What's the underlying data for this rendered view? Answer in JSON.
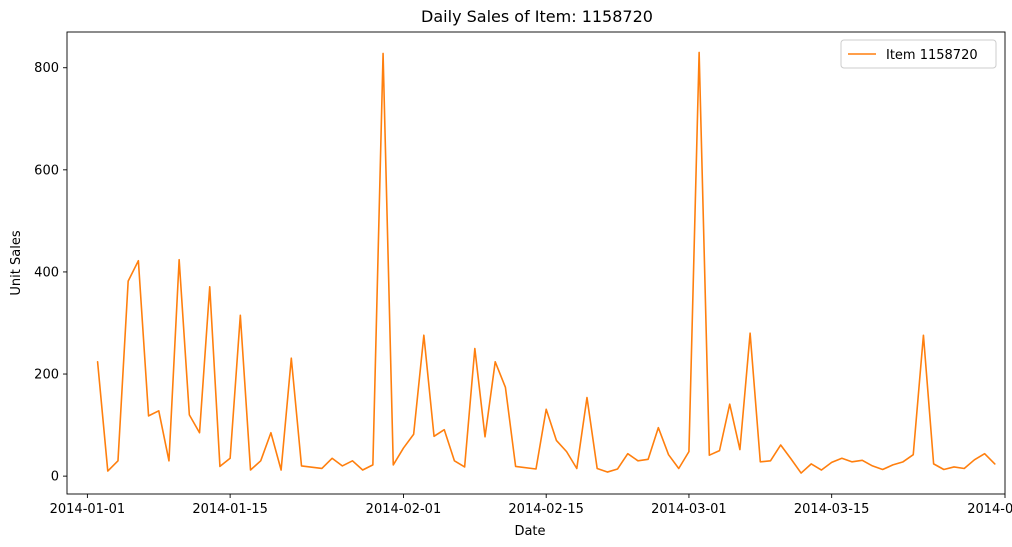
{
  "chart_data": {
    "type": "line",
    "title": "Daily Sales of Item: 1158720",
    "xlabel": "Date",
    "ylabel": "Unit Sales",
    "xlim": [
      "2013-12-30",
      "2014-04-01"
    ],
    "ylim": [
      -35,
      870
    ],
    "grid": false,
    "legend_position": "top-right",
    "x_ticks": [
      {
        "date": "2014-01-01",
        "label": "2014-01-01"
      },
      {
        "date": "2014-01-15",
        "label": "2014-01-15"
      },
      {
        "date": "2014-02-01",
        "label": "2014-02-01"
      },
      {
        "date": "2014-02-15",
        "label": "2014-02-15"
      },
      {
        "date": "2014-03-01",
        "label": "2014-03-01"
      },
      {
        "date": "2014-03-15",
        "label": "2014-03-15"
      },
      {
        "date": "2014-04-01",
        "label": "2014-04-01"
      }
    ],
    "y_ticks": [
      {
        "value": 0,
        "label": "0"
      },
      {
        "value": 200,
        "label": "200"
      },
      {
        "value": 400,
        "label": "400"
      },
      {
        "value": 600,
        "label": "600"
      },
      {
        "value": 800,
        "label": "800"
      }
    ],
    "colors": {
      "series": "#ff7f0e",
      "axis": "#000000",
      "legend_border": "#cccccc"
    },
    "series": [
      {
        "name": "Item 1158720",
        "x": [
          "2014-01-02",
          "2014-01-03",
          "2014-01-04",
          "2014-01-05",
          "2014-01-06",
          "2014-01-07",
          "2014-01-08",
          "2014-01-09",
          "2014-01-10",
          "2014-01-11",
          "2014-01-12",
          "2014-01-13",
          "2014-01-14",
          "2014-01-15",
          "2014-01-16",
          "2014-01-17",
          "2014-01-18",
          "2014-01-19",
          "2014-01-20",
          "2014-01-21",
          "2014-01-22",
          "2014-01-24",
          "2014-01-25",
          "2014-01-26",
          "2014-01-27",
          "2014-01-28",
          "2014-01-29",
          "2014-01-30",
          "2014-01-31",
          "2014-02-01",
          "2014-02-02",
          "2014-02-03",
          "2014-02-04",
          "2014-02-05",
          "2014-02-06",
          "2014-02-07",
          "2014-02-08",
          "2014-02-09",
          "2014-02-10",
          "2014-02-11",
          "2014-02-12",
          "2014-02-14",
          "2014-02-15",
          "2014-02-16",
          "2014-02-17",
          "2014-02-18",
          "2014-02-19",
          "2014-02-20",
          "2014-02-21",
          "2014-02-22",
          "2014-02-23",
          "2014-02-24",
          "2014-02-25",
          "2014-02-26",
          "2014-02-27",
          "2014-02-28",
          "2014-03-01",
          "2014-03-02",
          "2014-03-03",
          "2014-03-04",
          "2014-03-05",
          "2014-03-06",
          "2014-03-07",
          "2014-03-08",
          "2014-03-09",
          "2014-03-10",
          "2014-03-11",
          "2014-03-12",
          "2014-03-13",
          "2014-03-14",
          "2014-03-15",
          "2014-03-16",
          "2014-03-17",
          "2014-03-18",
          "2014-03-19",
          "2014-03-20",
          "2014-03-21",
          "2014-03-22",
          "2014-03-23",
          "2014-03-24",
          "2014-03-25",
          "2014-03-26",
          "2014-03-27",
          "2014-03-28",
          "2014-03-29",
          "2014-03-30",
          "2014-03-31"
        ],
        "values": [
          224,
          10,
          30,
          382,
          422,
          118,
          128,
          30,
          424,
          120,
          85,
          371,
          19,
          35,
          315,
          12,
          30,
          85,
          12,
          231,
          20,
          15,
          35,
          20,
          30,
          12,
          22,
          828,
          22,
          55,
          82,
          276,
          78,
          91,
          30,
          18,
          250,
          77,
          224,
          174,
          19,
          14,
          131,
          70,
          48,
          15,
          154,
          15,
          8,
          14,
          44,
          30,
          33,
          95,
          42,
          15,
          48,
          830,
          41,
          50,
          141,
          52,
          280,
          28,
          30,
          61,
          34,
          6,
          24,
          12,
          27,
          35,
          28,
          31,
          20,
          13,
          22,
          28,
          42,
          276,
          24,
          13,
          18,
          15,
          32,
          44,
          24
        ]
      }
    ]
  }
}
